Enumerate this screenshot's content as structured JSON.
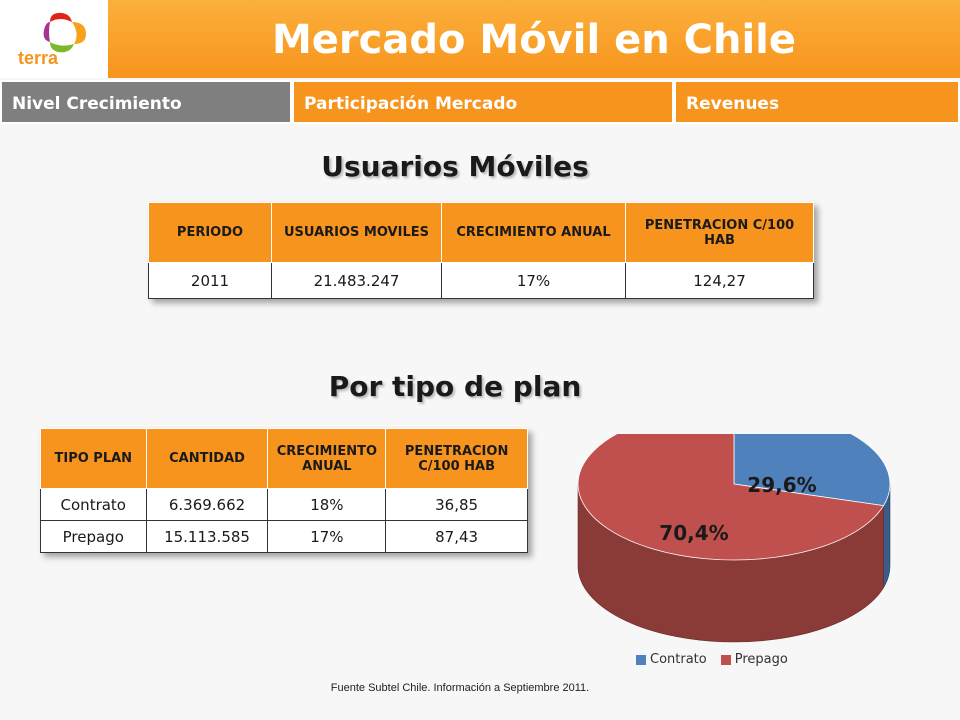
{
  "header": {
    "logo_text": "terra",
    "title": "Mercado Móvil en Chile"
  },
  "tabs": [
    {
      "label": "Nivel Crecimiento",
      "active": true
    },
    {
      "label": "Participación Mercado",
      "active": false
    },
    {
      "label": "Revenues",
      "active": false
    }
  ],
  "section1": {
    "title": "Usuarios Móviles",
    "headers": [
      "PERIODO",
      "USUARIOS MOVILES",
      "CRECIMIENTO ANUAL",
      "PENETRACION C/100 HAB"
    ],
    "rows": [
      [
        "2011",
        "21.483.247",
        "17%",
        "124,27"
      ]
    ]
  },
  "section2": {
    "title": "Por tipo de plan",
    "headers": [
      "TIPO PLAN",
      "CANTIDAD",
      "CRECIMIENTO ANUAL",
      "PENETRACION C/100 HAB"
    ],
    "rows": [
      [
        "Contrato",
        "6.369.662",
        "18%",
        "36,85"
      ],
      [
        "Prepago",
        "15.113.585",
        "17%",
        "87,43"
      ]
    ]
  },
  "chart_data": {
    "type": "pie",
    "categories": [
      "Contrato",
      "Prepago"
    ],
    "values": [
      29.6,
      70.4
    ],
    "labels": [
      "29,6%",
      "70,4%"
    ],
    "colors": [
      "#4f81bd",
      "#c0504d"
    ],
    "legend_position": "bottom"
  },
  "source_note": "Fuente Subtel Chile. Información a Septiembre 2011."
}
